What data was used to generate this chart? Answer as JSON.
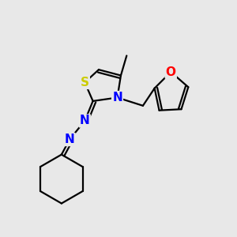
{
  "background_color": "#e8e8e8",
  "bond_color": "#000000",
  "atom_colors": {
    "S": "#cccc00",
    "N": "#0000ff",
    "O": "#ff0000",
    "C": "#000000"
  },
  "figsize": [
    3.0,
    3.0
  ],
  "dpi": 100,
  "xlim": [
    0,
    10
  ],
  "ylim": [
    0,
    10
  ],
  "lw": 1.6,
  "fontsize": 11
}
